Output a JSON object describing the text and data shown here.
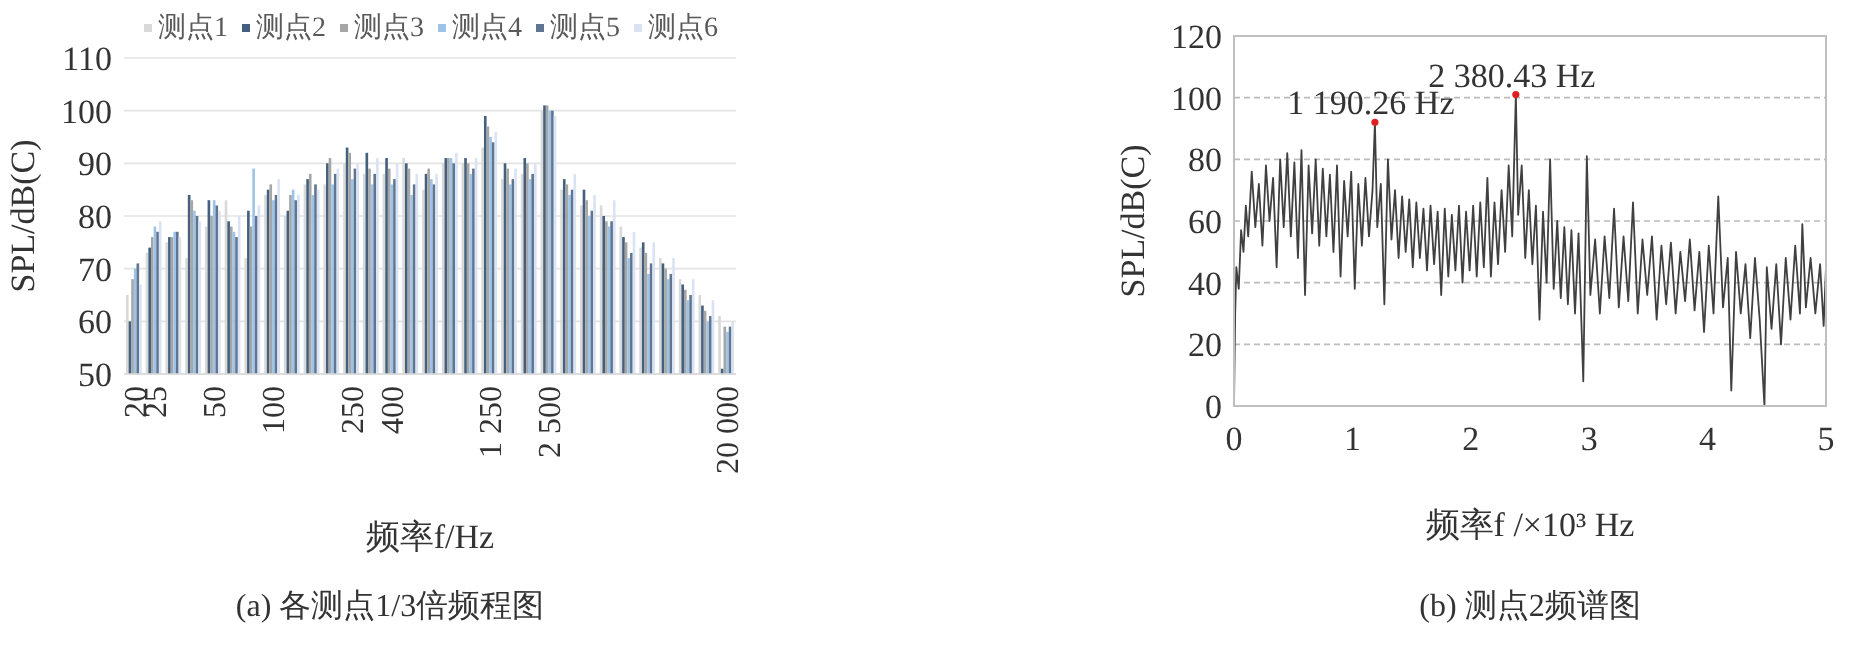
{
  "chart_data": [
    {
      "type": "bar",
      "categories": [
        "20",
        "25",
        null,
        null,
        "50",
        null,
        null,
        "100",
        null,
        null,
        null,
        "250",
        null,
        "400",
        null,
        null,
        null,
        null,
        "1 250",
        null,
        null,
        "2 500",
        null,
        null,
        null,
        null,
        null,
        null,
        null,
        null,
        "20 000"
      ],
      "series": [
        {
          "name": "测点1",
          "color": "#d9d9d9",
          "values": [
            65,
            73,
            75,
            72,
            78,
            83,
            72,
            84,
            80,
            86,
            86,
            90,
            88,
            88,
            91,
            85,
            90,
            90,
            93,
            87,
            88,
            100,
            85,
            82,
            82,
            78,
            74,
            72,
            68,
            65,
            61
          ]
        },
        {
          "name": "测点2",
          "color": "#44607e",
          "values": [
            60,
            74,
            76,
            84,
            83,
            79,
            81,
            85,
            81,
            87,
            90,
            93,
            92,
            91,
            90,
            88,
            91,
            91,
            99,
            90,
            91,
            101,
            87,
            85,
            80,
            76,
            75,
            71,
            67,
            63,
            51
          ]
        },
        {
          "name": "测点3",
          "color": "#a6a6a6",
          "values": [
            68,
            76,
            76,
            83,
            80,
            78,
            78,
            86,
            84,
            88,
            91,
            92,
            89,
            89,
            89,
            89,
            91,
            90,
            97,
            89,
            90,
            101,
            86,
            83,
            79,
            75,
            73,
            70,
            66,
            62,
            59
          ]
        },
        {
          "name": "测点4",
          "color": "#9dc3e6",
          "values": [
            70,
            78,
            77,
            81,
            83,
            77,
            89,
            83,
            85,
            84,
            86,
            87,
            86,
            86,
            84,
            87,
            91,
            88,
            95,
            86,
            87,
            100,
            84,
            80,
            78,
            72,
            69,
            68,
            64,
            60,
            58
          ]
        },
        {
          "name": "测点5",
          "color": "#5f7590",
          "values": [
            71,
            77,
            77,
            80,
            82,
            76,
            80,
            84,
            83,
            86,
            88,
            89,
            88,
            87,
            86,
            86,
            90,
            89,
            94,
            87,
            88,
            100,
            85,
            81,
            79,
            73,
            71,
            69,
            65,
            61,
            59
          ]
        },
        {
          "name": "测点6",
          "color": "#dae3f3",
          "values": [
            67,
            79,
            76,
            79,
            81,
            80,
            82,
            87,
            84,
            85,
            89,
            90,
            91,
            90,
            88,
            88,
            92,
            91,
            96,
            89,
            90,
            99,
            88,
            84,
            83,
            77,
            75,
            72,
            68,
            64,
            60
          ]
        }
      ],
      "ylim": [
        50,
        110
      ],
      "yticks": [
        50,
        60,
        70,
        80,
        90,
        100,
        110
      ],
      "ylabel": "SPL/dB(C)",
      "xlabel": "频率f/Hz",
      "legend": "top",
      "grid": "y",
      "annotations": [
        "(a) 各测点1/3倍频程图"
      ]
    },
    {
      "type": "line",
      "series": [
        {
          "color": "#404040",
          "x": [
            0,
            0.01,
            0.02,
            0.04,
            0.06,
            0.08,
            0.1,
            0.12,
            0.15,
            0.18,
            0.21,
            0.24,
            0.27,
            0.3,
            0.33,
            0.36,
            0.39,
            0.42,
            0.45,
            0.48,
            0.51,
            0.54,
            0.57,
            0.6,
            0.63,
            0.66,
            0.69,
            0.72,
            0.75,
            0.78,
            0.81,
            0.84,
            0.87,
            0.9,
            0.93,
            0.96,
            0.99,
            1.02,
            1.05,
            1.08,
            1.11,
            1.14,
            1.17,
            1.19026,
            1.21,
            1.24,
            1.27,
            1.3,
            1.33,
            1.36,
            1.39,
            1.42,
            1.45,
            1.48,
            1.51,
            1.54,
            1.57,
            1.6,
            1.63,
            1.66,
            1.69,
            1.72,
            1.75,
            1.78,
            1.81,
            1.84,
            1.87,
            1.9,
            1.93,
            1.96,
            1.99,
            2.02,
            2.05,
            2.08,
            2.11,
            2.14,
            2.17,
            2.2,
            2.23,
            2.26,
            2.29,
            2.32,
            2.35,
            2.38043,
            2.4,
            2.43,
            2.46,
            2.49,
            2.52,
            2.55,
            2.58,
            2.61,
            2.64,
            2.67,
            2.7,
            2.73,
            2.76,
            2.79,
            2.82,
            2.85,
            2.88,
            2.91,
            2.95,
            2.98,
            3.01,
            3.05,
            3.09,
            3.13,
            3.17,
            3.21,
            3.25,
            3.29,
            3.33,
            3.37,
            3.41,
            3.45,
            3.49,
            3.53,
            3.57,
            3.61,
            3.65,
            3.69,
            3.73,
            3.77,
            3.81,
            3.85,
            3.89,
            3.93,
            3.97,
            4.01,
            4.05,
            4.09,
            4.13,
            4.17,
            4.2,
            4.24,
            4.28,
            4.32,
            4.36,
            4.4,
            4.44,
            4.48,
            4.5,
            4.54,
            4.58,
            4.62,
            4.66,
            4.7,
            4.74,
            4.78,
            4.8,
            4.83,
            4.87,
            4.91,
            4.95,
            4.98,
            5
          ],
          "values": [
            0,
            30,
            45,
            38,
            57,
            50,
            65,
            55,
            76,
            58,
            72,
            52,
            78,
            60,
            74,
            45,
            80,
            58,
            82,
            55,
            79,
            48,
            83,
            36,
            78,
            56,
            80,
            52,
            77,
            55,
            75,
            50,
            78,
            42,
            73,
            55,
            76,
            38,
            72,
            52,
            74,
            55,
            70,
            92,
            58,
            72,
            33,
            80,
            54,
            70,
            48,
            68,
            50,
            67,
            45,
            66,
            48,
            64,
            44,
            65,
            46,
            63,
            36,
            64,
            42,
            62,
            44,
            65,
            40,
            63,
            44,
            65,
            42,
            66,
            45,
            74,
            42,
            66,
            46,
            70,
            50,
            78,
            55,
            101,
            62,
            78,
            48,
            70,
            46,
            65,
            28,
            63,
            40,
            80,
            38,
            60,
            35,
            58,
            33,
            57,
            30,
            56,
            8,
            81,
            36,
            54,
            30,
            55,
            35,
            64,
            32,
            55,
            34,
            66,
            30,
            54,
            36,
            55,
            28,
            52,
            33,
            53,
            30,
            50,
            34,
            54,
            31,
            50,
            24,
            52,
            30,
            68,
            32,
            48,
            5,
            50,
            30,
            46,
            22,
            48,
            28,
            0,
            45,
            25,
            46,
            20,
            48,
            28,
            52,
            30,
            59,
            32,
            48,
            30,
            46,
            26,
            45
          ]
        }
      ],
      "xlim": [
        0,
        5
      ],
      "xticks": [
        0,
        1,
        2,
        3,
        4,
        5
      ],
      "ylim": [
        0,
        120
      ],
      "yticks": [
        0,
        20,
        40,
        60,
        80,
        100,
        120
      ],
      "ylabel": "SPL/dB(C)",
      "xlabel": "频率f /×10³ Hz",
      "grid": "y",
      "annotations": [
        "(b) 测点2频谱图",
        {
          "text": "1 190.26 Hz",
          "x": 1.19026,
          "y": 92
        },
        {
          "text": "2 380.43 Hz",
          "x": 2.38043,
          "y": 101
        }
      ]
    }
  ]
}
